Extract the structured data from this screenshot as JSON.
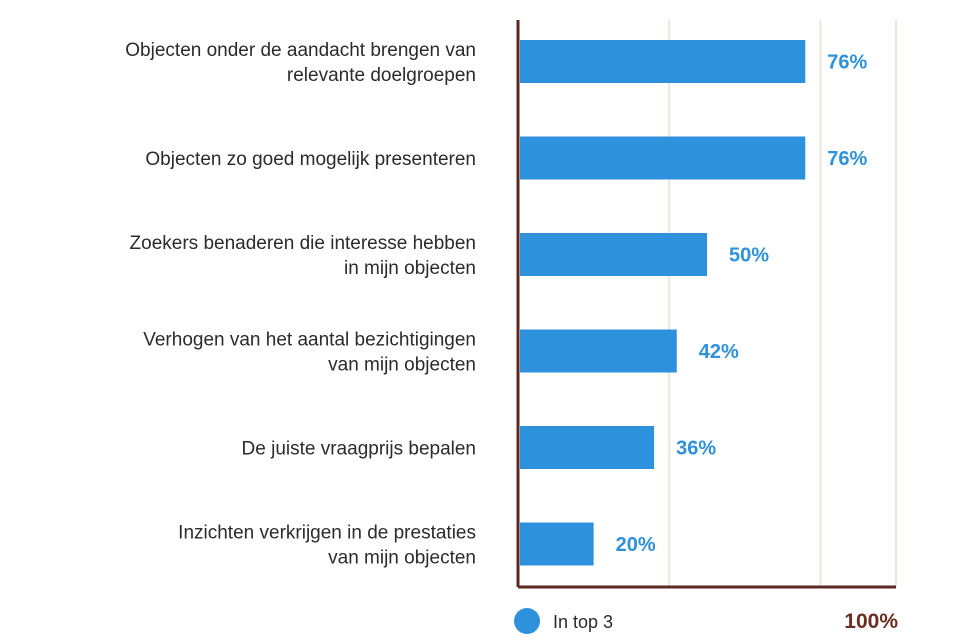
{
  "chart_data": {
    "type": "bar",
    "orientation": "horizontal",
    "categories": [
      [
        "Objecten onder de aandacht brengen van",
        "relevante doelgroepen"
      ],
      [
        "Objecten zo goed mogelijk presenteren"
      ],
      [
        "Zoekers benaderen die interesse hebben",
        "in mijn objecten"
      ],
      [
        "Verhogen van het aantal bezichtigingen",
        "van mijn objecten"
      ],
      [
        "De juiste vraagprijs bepalen"
      ],
      [
        "Inzichten verkrijgen in de prestaties",
        "van mijn objecten"
      ]
    ],
    "series": [
      {
        "name": "In top 3",
        "values": [
          76,
          76,
          50,
          42,
          36,
          20
        ]
      }
    ],
    "value_labels": [
      "76%",
      "76%",
      "50%",
      "42%",
      "36%",
      "20%"
    ],
    "xlim": [
      0,
      100
    ],
    "x_max_label": "100%",
    "grid": true,
    "legend": {
      "position": "bottom-center",
      "label": "In top 3"
    }
  },
  "colors": {
    "bar": "#2e91db",
    "value_text": "#2e91db",
    "axis": "#5a2a20",
    "grid": "#ece6d8",
    "max_label": "#6b2e22"
  }
}
